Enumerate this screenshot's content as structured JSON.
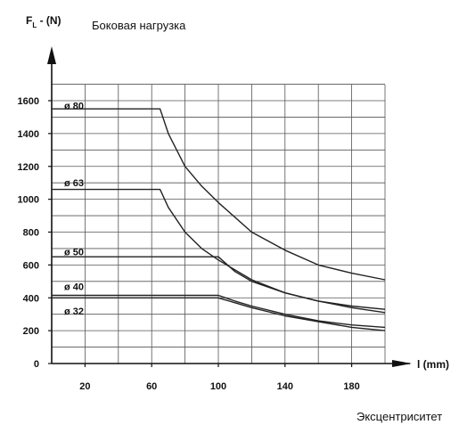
{
  "chart_data": {
    "type": "line",
    "title": "Боковая нагрузка",
    "ylabel": "F",
    "ylabel_sub": "L",
    "ylabel_unit": " - (N)",
    "xlabel": "l (mm)",
    "caption": "Эксцентриситет",
    "xlim": [
      0,
      200
    ],
    "ylim": [
      0,
      1700
    ],
    "x_ticks": [
      20,
      60,
      100,
      140,
      180
    ],
    "y_ticks": [
      0,
      200,
      400,
      600,
      800,
      1000,
      1200,
      1400,
      1600
    ],
    "grid": true,
    "series": [
      {
        "name": "ø 80",
        "x": [
          0,
          65,
          70,
          80,
          90,
          100,
          120,
          140,
          160,
          180,
          200
        ],
        "y": [
          1550,
          1550,
          1400,
          1200,
          1080,
          980,
          800,
          690,
          600,
          550,
          510
        ]
      },
      {
        "name": "ø 63",
        "x": [
          0,
          65,
          70,
          80,
          90,
          100,
          120,
          140,
          160,
          180,
          200
        ],
        "y": [
          1060,
          1060,
          950,
          800,
          700,
          630,
          510,
          430,
          380,
          350,
          330
        ]
      },
      {
        "name": "ø 50",
        "x": [
          0,
          100,
          110,
          120,
          140,
          160,
          180,
          200
        ],
        "y": [
          650,
          650,
          560,
          500,
          430,
          380,
          340,
          310
        ]
      },
      {
        "name": "ø 40",
        "x": [
          0,
          100,
          110,
          120,
          140,
          160,
          180,
          200
        ],
        "y": [
          415,
          415,
          380,
          350,
          300,
          260,
          235,
          220
        ]
      },
      {
        "name": "ø 32",
        "x": [
          0,
          100,
          110,
          120,
          140,
          160,
          180,
          200
        ],
        "y": [
          400,
          400,
          370,
          340,
          290,
          255,
          220,
          200
        ]
      }
    ],
    "series_label_text": [
      "ø 80",
      "ø 63",
      "ø 50",
      "ø 40",
      "ø 32"
    ]
  }
}
